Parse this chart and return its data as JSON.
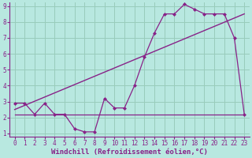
{
  "xlabel": "Windchill (Refroidissement éolien,°C)",
  "bg_color": "#b8e8e0",
  "grid_color": "#99ccbb",
  "line_color": "#882288",
  "xlim": [
    -0.5,
    23.5
  ],
  "ylim": [
    0.8,
    9.2
  ],
  "xticks": [
    0,
    1,
    2,
    3,
    4,
    5,
    6,
    7,
    8,
    9,
    10,
    11,
    12,
    13,
    14,
    15,
    16,
    17,
    18,
    19,
    20,
    21,
    22,
    23
  ],
  "yticks": [
    1,
    2,
    3,
    4,
    5,
    6,
    7,
    8,
    9
  ],
  "series1_x": [
    0,
    1,
    2,
    3,
    4,
    5,
    6,
    7,
    8,
    9,
    10,
    11,
    12,
    13,
    14,
    15,
    16,
    17,
    18,
    19,
    20,
    21,
    22,
    23
  ],
  "series1_y": [
    2.9,
    2.9,
    2.2,
    2.9,
    2.2,
    2.2,
    1.3,
    1.1,
    1.1,
    3.2,
    2.6,
    2.6,
    4.0,
    5.8,
    7.3,
    8.5,
    8.5,
    9.1,
    8.8,
    8.5,
    8.5,
    8.5,
    7.0,
    2.2
  ],
  "series2_x": [
    0,
    1,
    2,
    3,
    4,
    5,
    6,
    7,
    8,
    9,
    10,
    11,
    12,
    13,
    14,
    15,
    16,
    17,
    18,
    19,
    20,
    21,
    22,
    23
  ],
  "series2_y": [
    2.2,
    2.2,
    2.2,
    2.2,
    2.2,
    2.2,
    2.2,
    2.2,
    2.2,
    2.2,
    2.2,
    2.2,
    2.2,
    2.2,
    2.2,
    2.2,
    2.2,
    2.2,
    2.2,
    2.2,
    2.2,
    2.2,
    2.2,
    2.2
  ],
  "trend_x": [
    0,
    23
  ],
  "trend_y": [
    2.5,
    8.5
  ],
  "xlabel_fontsize": 6.5,
  "tick_fontsize": 5.5
}
